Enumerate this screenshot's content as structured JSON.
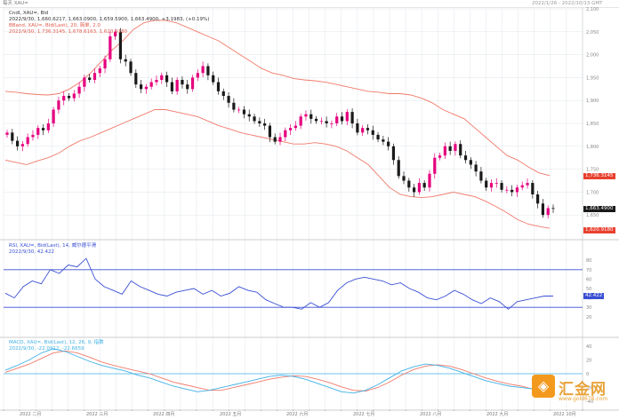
{
  "top_bar": {
    "left_label": "每天 XAU=",
    "right_label": "2022/1/26 - 2022/10/13 GMT"
  },
  "main_header": {
    "line1": "Cndl, XAU=, Bid",
    "line2": "2022/9/30, 1,660.6217, 1,663.0900, 1,659.5900, 1,663.4900, +3.1983, (+0.19%)",
    "line3": "BBand, XAU=, Bid(Last), 20, 简单, 2.0",
    "line4": "2022/9/30, 1,736.3145, 1,678.6163, 1,620.9180"
  },
  "rsi_header": {
    "line1": "RSI, XAU=, Bid(Last), 14, 威尔德平滑",
    "line2": "2022/9/30, 42.422"
  },
  "macd_header": {
    "line1": "MACD, XAU=, Bid(Last), 12, 26, 9, 指数",
    "line2": "2022/9/30, -22.0912, -22.6659"
  },
  "price_tags": {
    "upper": "1,736.3145",
    "last": "1,663.4900",
    "lower": "1,620.9180"
  },
  "rsi_tag": "42.422",
  "watermark": {
    "brand": "汇金网",
    "url": "www.gold678.com"
  },
  "colors": {
    "up": "#e6007e",
    "down": "#1a1a1a",
    "bband": "#f07a6a",
    "rsi": "#3a4fd4",
    "macd": "#3fb0e6",
    "signal": "#f07a6a",
    "grid": "#d8dde3"
  },
  "chart_data": [
    {
      "type": "candlestick",
      "title": "Cndl, XAU=, Bid",
      "x_tick_labels": [
        "2022 二月",
        "2022 三月",
        "2022 四月",
        "2022 五月",
        "2022 六月",
        "2022 七月",
        "2022 八月",
        "2022 九月",
        "2022 10月"
      ],
      "y_tick_labels": [
        "2,100",
        "2,050",
        "2,000",
        "1,950",
        "1,900",
        "1,850",
        "1,800",
        "1,750",
        "1,700",
        "1,650"
      ],
      "ylim": [
        1600,
        2100
      ],
      "close": [
        1830,
        1812,
        1800,
        1805,
        1820,
        1825,
        1840,
        1835,
        1850,
        1880,
        1900,
        1910,
        1905,
        1915,
        1930,
        1950,
        1945,
        1960,
        1970,
        1990,
        2040,
        2050,
        1990,
        1985,
        1960,
        1935,
        1925,
        1930,
        1940,
        1945,
        1955,
        1940,
        1920,
        1945,
        1935,
        1925,
        1950,
        1960,
        1975,
        1955,
        1940,
        1920,
        1910,
        1895,
        1880,
        1880,
        1870,
        1865,
        1855,
        1850,
        1845,
        1820,
        1810,
        1820,
        1835,
        1840,
        1845,
        1865,
        1870,
        1860,
        1855,
        1855,
        1850,
        1850,
        1865,
        1855,
        1875,
        1850,
        1830,
        1840,
        1835,
        1825,
        1815,
        1810,
        1800,
        1770,
        1735,
        1725,
        1710,
        1700,
        1720,
        1710,
        1740,
        1775,
        1780,
        1800,
        1790,
        1805,
        1780,
        1770,
        1760,
        1745,
        1725,
        1710,
        1720,
        1720,
        1705,
        1705,
        1700,
        1710,
        1715,
        1720,
        1695,
        1675,
        1650,
        1665,
        1663.5
      ],
      "bb_upper": [
        1920,
        1918,
        1915,
        1913,
        1912,
        1915,
        1925,
        1940,
        1960,
        1985,
        2010,
        2030,
        2055,
        2070,
        2075,
        2075,
        2070,
        2060,
        2050,
        2040,
        2030,
        2015,
        2000,
        1985,
        1970,
        1960,
        1955,
        1948,
        1945,
        1943,
        1940,
        1935,
        1930,
        1925,
        1920,
        1918,
        1915,
        1915,
        1912,
        1905,
        1895,
        1880,
        1870,
        1860,
        1840,
        1820,
        1800,
        1780,
        1770,
        1755,
        1742,
        1736
      ],
      "bb_lower": [
        1770,
        1765,
        1760,
        1768,
        1775,
        1785,
        1800,
        1812,
        1820,
        1830,
        1840,
        1850,
        1860,
        1870,
        1880,
        1880,
        1875,
        1870,
        1865,
        1855,
        1845,
        1838,
        1830,
        1825,
        1820,
        1815,
        1810,
        1805,
        1805,
        1808,
        1805,
        1800,
        1790,
        1775,
        1760,
        1735,
        1710,
        1695,
        1690,
        1688,
        1690,
        1695,
        1700,
        1695,
        1690,
        1680,
        1668,
        1655,
        1640,
        1630,
        1625,
        1621
      ]
    },
    {
      "type": "line",
      "title": "RSI",
      "ylim": [
        0,
        100
      ],
      "levels": [
        70,
        30
      ],
      "y_tick_labels": [
        "80",
        "70",
        "60",
        "50",
        "40",
        "30",
        "20"
      ],
      "series": [
        {
          "name": "RSI",
          "values": [
            45,
            40,
            52,
            58,
            55,
            70,
            66,
            75,
            73,
            82,
            60,
            52,
            48,
            44,
            58,
            52,
            48,
            44,
            42,
            46,
            48,
            50,
            44,
            48,
            42,
            45,
            52,
            48,
            46,
            38,
            34,
            30,
            30,
            28,
            35,
            30,
            35,
            48,
            56,
            60,
            62,
            60,
            58,
            54,
            56,
            50,
            46,
            40,
            38,
            42,
            48,
            44,
            38,
            34,
            40,
            36,
            28,
            36,
            38,
            40,
            42,
            42
          ]
        }
      ]
    },
    {
      "type": "line",
      "title": "MACD",
      "ylim": [
        -50,
        50
      ],
      "y_tick_labels": [
        "40",
        "20",
        "0",
        "-20",
        "-40"
      ],
      "series": [
        {
          "name": "MACD",
          "values": [
            5,
            12,
            20,
            30,
            36,
            32,
            25,
            18,
            12,
            8,
            4,
            -2,
            -6,
            -12,
            -18,
            -22,
            -26,
            -24,
            -20,
            -16,
            -12,
            -8,
            -4,
            -2,
            -4,
            -8,
            -14,
            -20,
            -26,
            -28,
            -24,
            -16,
            -6,
            4,
            10,
            14,
            12,
            8,
            2,
            -4,
            -10,
            -14,
            -18,
            -20,
            -22
          ]
        },
        {
          "name": "Signal",
          "values": [
            2,
            8,
            14,
            22,
            30,
            33,
            30,
            24,
            17,
            12,
            8,
            4,
            0,
            -6,
            -12,
            -16,
            -20,
            -24,
            -24,
            -20,
            -16,
            -12,
            -8,
            -5,
            -3,
            -4,
            -8,
            -13,
            -19,
            -24,
            -25,
            -20,
            -12,
            -2,
            6,
            11,
            13,
            11,
            6,
            0,
            -6,
            -11,
            -15,
            -18,
            -22.7
          ]
        }
      ]
    }
  ]
}
